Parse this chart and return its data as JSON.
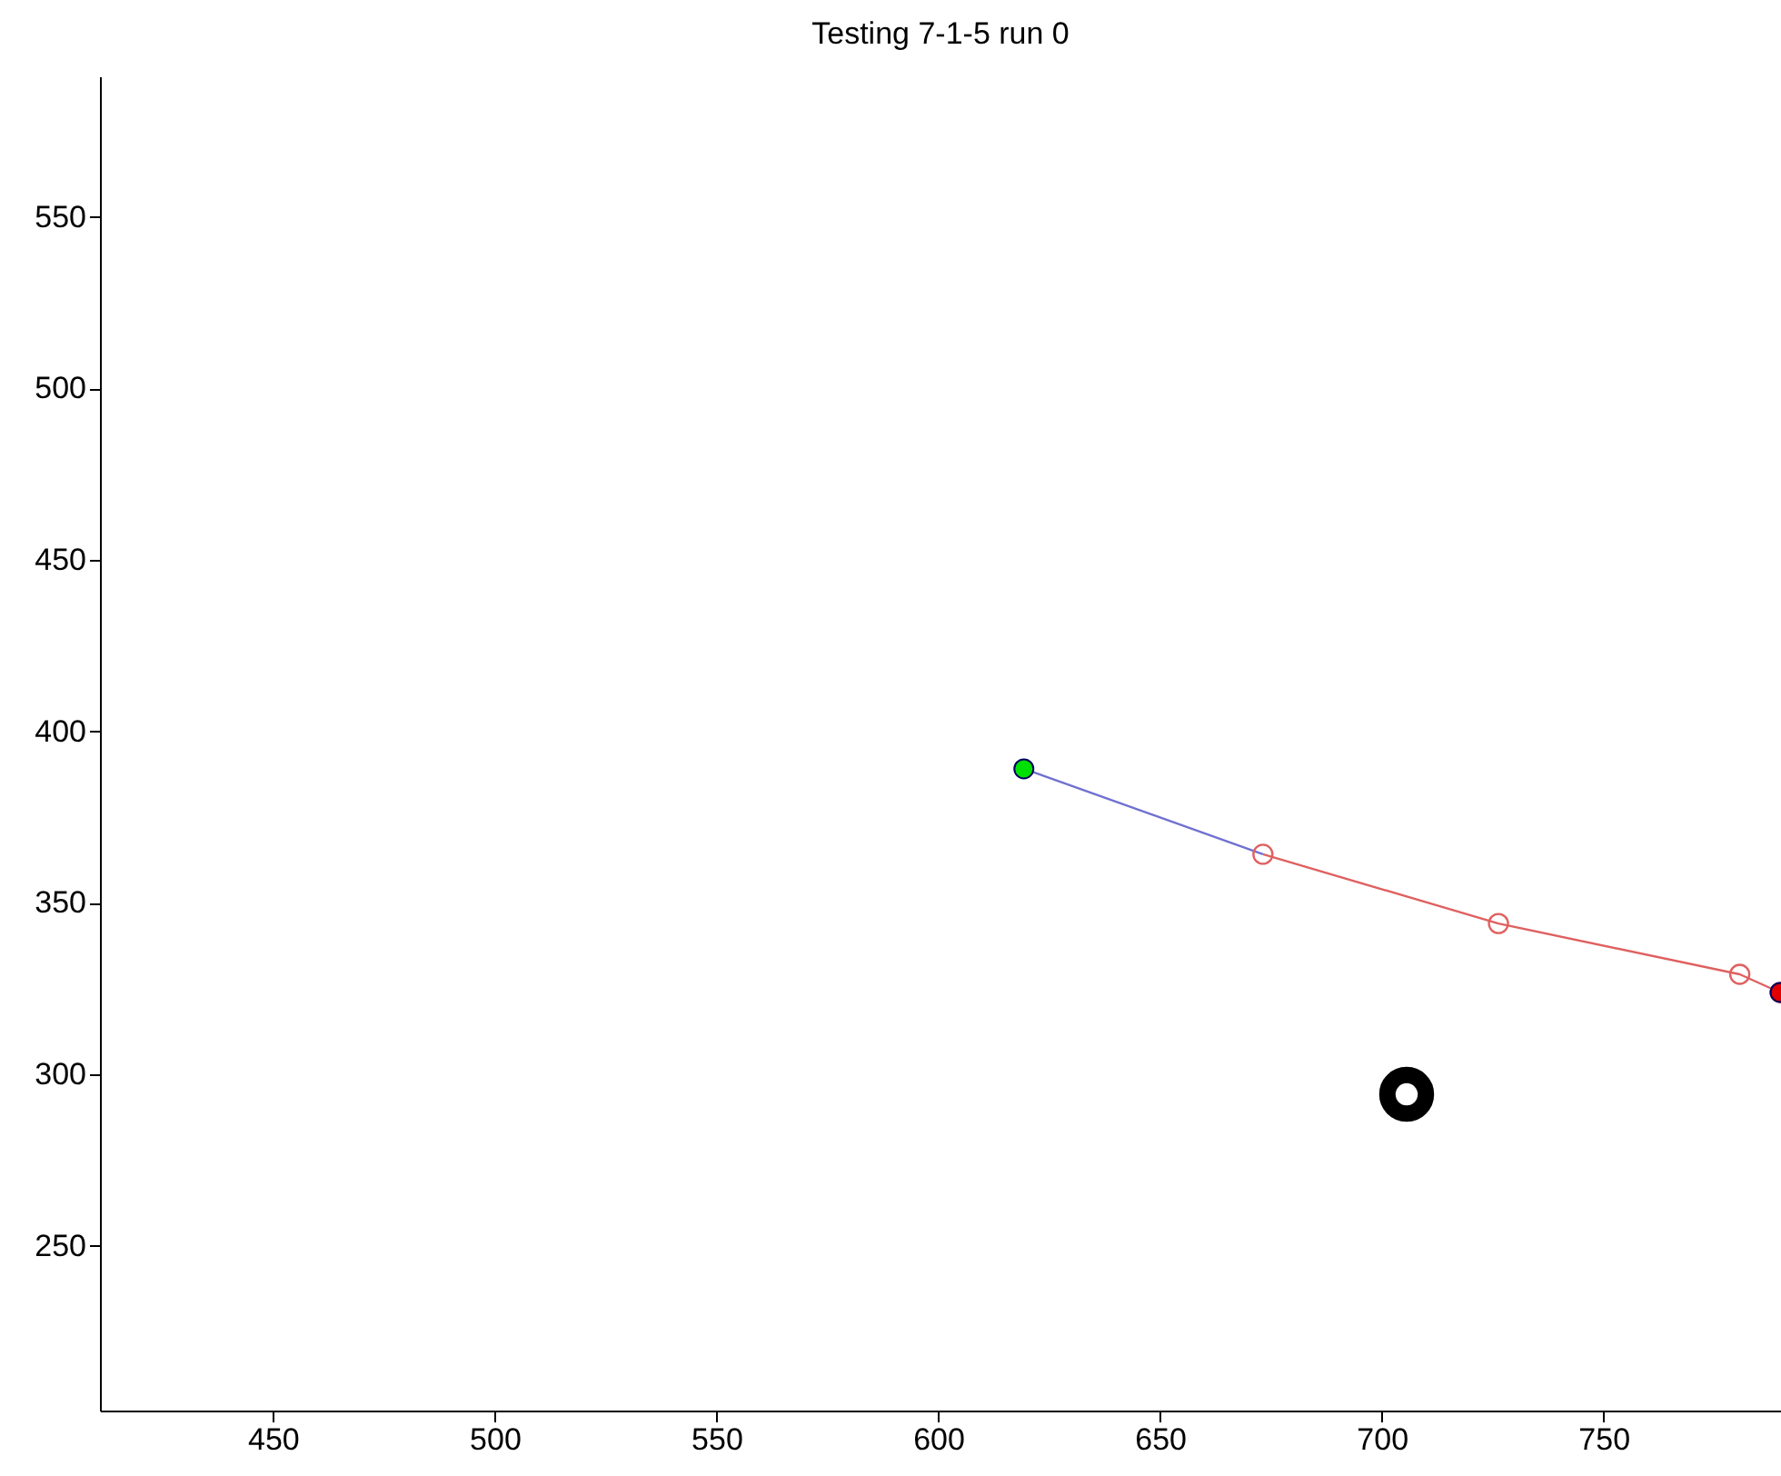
{
  "chart_data": {
    "type": "line",
    "title": "Testing 7-1-5 run 0",
    "xlim": [
      411,
      790
    ],
    "xticks": [
      450,
      500,
      550,
      600,
      650,
      700,
      750
    ],
    "ylim": [
      202,
      591
    ],
    "yticks": [
      250,
      300,
      350,
      400,
      450,
      500,
      550
    ],
    "grid": false,
    "series": [
      {
        "color": "#7070d0",
        "marker": "none",
        "x": [
          619.3,
          673.2
        ],
        "values": [
          389.1,
          364.2
        ]
      },
      {
        "color": "#e06060",
        "marker": "circle",
        "x": [
          673.2,
          726.3,
          780.7,
          789.8
        ],
        "values": [
          364.2,
          344.0,
          329.2,
          323.9
        ]
      },
      {
        "type": "scatter",
        "color": "#00e000",
        "marker": "circle",
        "x": [
          619.3
        ],
        "values": [
          389.1
        ]
      },
      {
        "type": "scatter",
        "color": "#e00000",
        "marker": "circle",
        "x": [
          789.8
        ],
        "values": [
          323.9
        ]
      },
      {
        "type": "scatter",
        "color": "#000000",
        "marker": "circle",
        "x": [
          705.6
        ],
        "values": [
          294.2
        ]
      }
    ]
  }
}
